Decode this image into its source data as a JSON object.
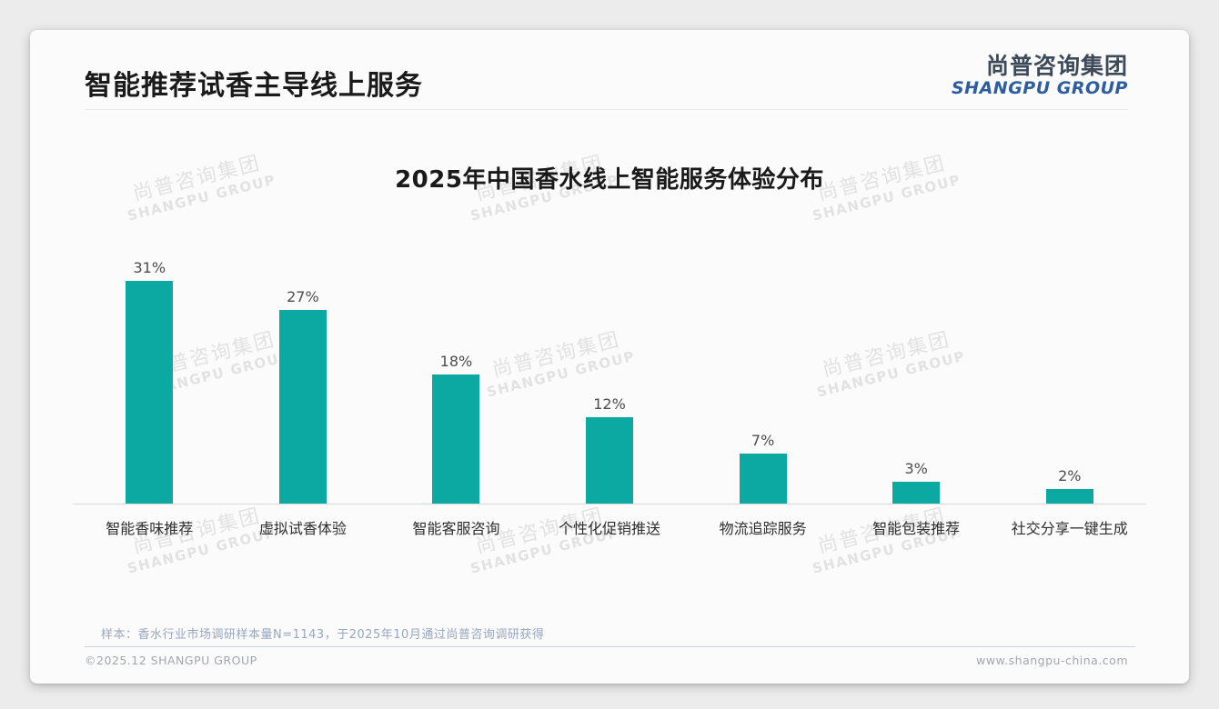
{
  "header": {
    "title": "智能推荐试香主导线上服务",
    "logo": {
      "cn": "尚普咨询集团",
      "en": "SHANGPU GROUP"
    }
  },
  "chart_data": {
    "type": "bar",
    "title": "2025年中国香水线上智能服务体验分布",
    "categories": [
      "智能香味推荐",
      "虚拟试香体验",
      "智能客服咨询",
      "个性化促销推送",
      "物流追踪服务",
      "智能包装推荐",
      "社交分享一键生成"
    ],
    "values": [
      31,
      27,
      18,
      12,
      7,
      3,
      2
    ],
    "value_suffix": "%",
    "bar_color": "#0ba9a1",
    "xlabel": "",
    "ylabel": "",
    "ylim": [
      0,
      35
    ],
    "grid": false,
    "legend": false,
    "value_labels_position": "above-bars"
  },
  "watermark": {
    "line1": "尚普咨询集团",
    "line2": "SHANGPU GROUP"
  },
  "note": "样本：香水行业市场调研样本量N=1143，于2025年10月通过尚普咨询调研获得",
  "footer": {
    "copyright": "©2025.12 SHANGPU GROUP",
    "website": "www.shangpu-china.com"
  },
  "colors": {
    "bar": "#0ba9a1",
    "logo_cn": "#3d4a59",
    "logo_en": "#2d5d9f",
    "note_text": "#97a6c0",
    "watermark": "#e2e2e2"
  }
}
